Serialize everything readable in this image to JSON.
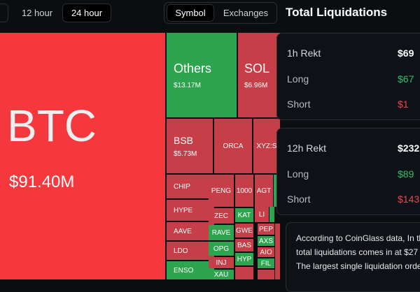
{
  "time_tabs": [
    "12 hour",
    "24 hour"
  ],
  "view_tabs": [
    "Symbol",
    "Exchanges"
  ],
  "treemap": {
    "tiles": [
      {
        "label": "BTC",
        "value": "$91.40M"
      },
      {
        "label": "Others",
        "value": "$13.17M"
      },
      {
        "label": "SOL",
        "value": "$6.96M"
      },
      {
        "label": "BSB",
        "value": "$5.73M"
      },
      {
        "label": "ORCA"
      },
      {
        "label": "XYZ:S"
      },
      {
        "label": "CHIP"
      },
      {
        "label": "HYPE"
      },
      {
        "label": "AAVE"
      },
      {
        "label": "LDO"
      },
      {
        "label": "ENSO"
      },
      {
        "label": "PENG"
      },
      {
        "label": "1000"
      },
      {
        "label": "AGT"
      },
      {
        "label": "ZEC"
      },
      {
        "label": "RAVE"
      },
      {
        "label": "OPG"
      },
      {
        "label": "INJ"
      },
      {
        "label": "XAU"
      },
      {
        "label": "KAT"
      },
      {
        "label": "GWE"
      },
      {
        "label": "BAS"
      },
      {
        "label": "HYP"
      },
      {
        "label": "LI"
      },
      {
        "label": "PEP"
      },
      {
        "label": "AXS"
      },
      {
        "label": "AIO"
      },
      {
        "label": "FIL"
      }
    ]
  },
  "panel": {
    "title": "Total Liquidations",
    "cards": [
      {
        "heading": "1h Rekt",
        "total": "$69",
        "long_label": "Long",
        "long": "$67",
        "short_label": "Short",
        "short": "$1"
      },
      {
        "heading": "12h Rekt",
        "total": "$232",
        "long_label": "Long",
        "long": "$89",
        "short_label": "Short",
        "short": "$143"
      }
    ],
    "note": [
      "According to CoinGlass data, In th",
      "total liquidations comes in at $27",
      "The largest single liquidation orde"
    ]
  }
}
